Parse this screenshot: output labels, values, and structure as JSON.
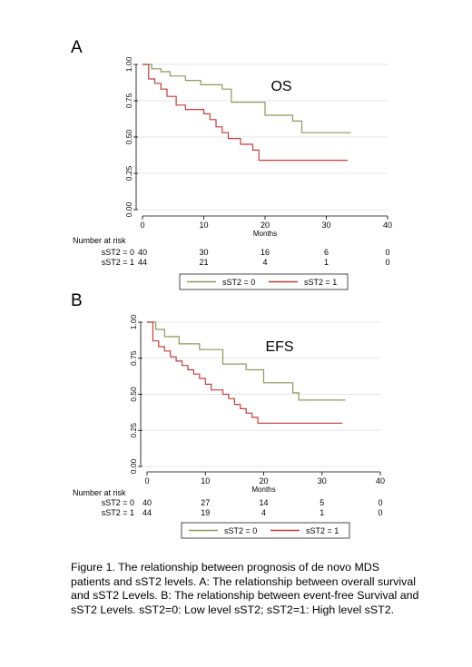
{
  "chart_data": [
    {
      "type": "line",
      "panel_label": "A",
      "title": "OS",
      "xlabel": "Months",
      "ylabel": "",
      "xlim": [
        0,
        40
      ],
      "ylim": [
        0,
        1
      ],
      "x_ticks": [
        "0",
        "10",
        "20",
        "30",
        "40"
      ],
      "y_ticks": [
        "0.00",
        "0.25",
        "0.50",
        "0.75",
        "1.00"
      ],
      "grid": "horizontal",
      "series": [
        {
          "name": "sST2 = 0",
          "color": "#8a9a5b",
          "x": [
            0,
            1.5,
            3,
            4.5,
            7,
            9.5,
            13,
            14.5,
            20,
            24.5,
            26,
            34
          ],
          "y": [
            1,
            0.97,
            0.95,
            0.92,
            0.89,
            0.86,
            0.83,
            0.74,
            0.65,
            0.61,
            0.53,
            0.53
          ]
        },
        {
          "name": "sST2 = 1",
          "color": "#c43c3c",
          "x": [
            0,
            1,
            2,
            3,
            4,
            5.5,
            7,
            10,
            11,
            12,
            13,
            14,
            16,
            18,
            19,
            33.5
          ],
          "y": [
            1,
            0.9,
            0.87,
            0.83,
            0.78,
            0.72,
            0.69,
            0.66,
            0.62,
            0.57,
            0.53,
            0.49,
            0.45,
            0.41,
            0.34,
            0.34
          ]
        }
      ],
      "risk_table": {
        "header": "Number at risk",
        "times": [
          "0",
          "10",
          "20",
          "30",
          "40"
        ],
        "rows": [
          {
            "label": "sST2 = 0",
            "counts": [
              "40",
              "30",
              "16",
              "6",
              "0"
            ]
          },
          {
            "label": "sST2 = 1",
            "counts": [
              "44",
              "21",
              "4",
              "1",
              "0"
            ]
          }
        ]
      },
      "legend": {
        "placement": "bottom",
        "entries": [
          "sST2 = 0",
          "sST2 = 1"
        ]
      }
    },
    {
      "type": "line",
      "panel_label": "B",
      "title": "EFS",
      "xlabel": "Months",
      "ylabel": "",
      "xlim": [
        0,
        40
      ],
      "ylim": [
        0,
        1
      ],
      "x_ticks": [
        "0",
        "10",
        "20",
        "30",
        "40"
      ],
      "y_ticks": [
        "0.00",
        "0.25",
        "0.50",
        "0.75",
        "1.00"
      ],
      "grid": "horizontal",
      "series": [
        {
          "name": "sST2 = 0",
          "color": "#8a9a5b",
          "x": [
            0,
            1.5,
            3,
            5.5,
            9,
            13,
            17,
            20,
            25,
            26,
            34
          ],
          "y": [
            1,
            0.95,
            0.9,
            0.85,
            0.81,
            0.71,
            0.67,
            0.58,
            0.51,
            0.46,
            0.46
          ]
        },
        {
          "name": "sST2 = 1",
          "color": "#c43c3c",
          "x": [
            0,
            1,
            2,
            3,
            4,
            5,
            6,
            7,
            8,
            9,
            10,
            11,
            13,
            14,
            15,
            16,
            17,
            18,
            19,
            33.5
          ],
          "y": [
            1,
            0.87,
            0.83,
            0.8,
            0.76,
            0.73,
            0.7,
            0.67,
            0.64,
            0.61,
            0.57,
            0.53,
            0.5,
            0.47,
            0.43,
            0.4,
            0.37,
            0.34,
            0.3,
            0.3
          ]
        }
      ],
      "risk_table": {
        "header": "Number at risk",
        "times": [
          "0",
          "10",
          "20",
          "30",
          "40"
        ],
        "rows": [
          {
            "label": "sST2 = 0",
            "counts": [
              "40",
              "27",
              "14",
              "5",
              "0"
            ]
          },
          {
            "label": "sST2 = 1",
            "counts": [
              "44",
              "19",
              "4",
              "1",
              "0"
            ]
          }
        ]
      },
      "legend": {
        "placement": "bottom",
        "entries": [
          "sST2 = 0",
          "sST2 = 1"
        ]
      }
    }
  ],
  "caption": "Figure 1. The relationship between prognosis of de novo MDS patients and sST2 levels. A: The relationship between overall survival and sST2 Levels. B: The relationship between event-free Survival and sST2 Levels. sST2=0: Low level sST2; sST2=1: High level sST2."
}
